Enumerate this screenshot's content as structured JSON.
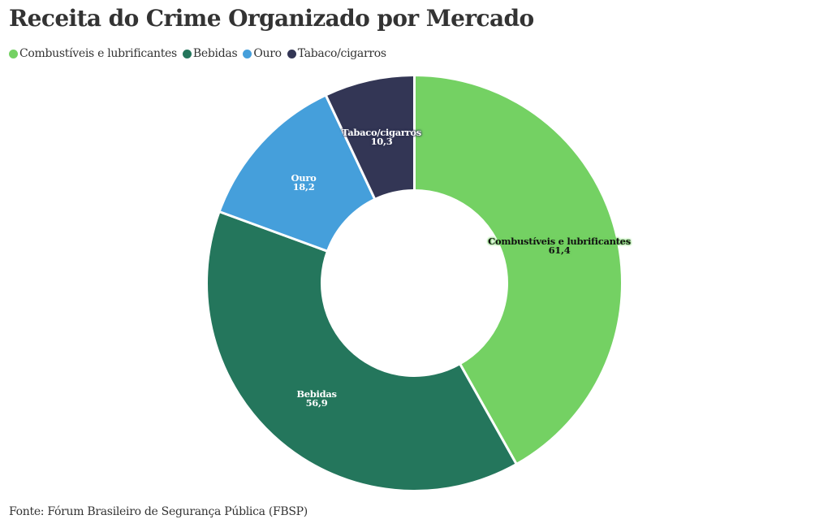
{
  "title": "Receita do Crime Organizado por Mercado",
  "source": "Fonte: Fórum Brasileiro de Segurança Pública (FBSP)",
  "legend": [
    {
      "label": "Combustíveis e lubrificantes",
      "color": "#74d163"
    },
    {
      "label": "Bebidas",
      "color": "#24765c"
    },
    {
      "label": "Ouro",
      "color": "#459fdb"
    },
    {
      "label": "Tabaco/cigarros",
      "color": "#333655"
    }
  ],
  "labels": {
    "s0": {
      "name": "Combustíveis e lubrificantes",
      "value": "61,4"
    },
    "s1": {
      "name": "Bebidas",
      "value": "56,9"
    },
    "s2": {
      "name": "Ouro",
      "value": "18,2"
    },
    "s3": {
      "name": "Tabaco/cigarros",
      "value": "10,3"
    }
  },
  "chart_data": {
    "type": "pie",
    "variant": "donut",
    "title": "Receita do Crime Organizado por Mercado",
    "categories": [
      "Combustíveis e lubrificantes",
      "Bebidas",
      "Ouro",
      "Tabaco/cigarros"
    ],
    "values": [
      61.4,
      56.9,
      18.2,
      10.3
    ],
    "colors": [
      "#74d163",
      "#24765c",
      "#459fdb",
      "#333655"
    ],
    "value_labels": [
      "61,4",
      "56,9",
      "18,2",
      "10,3"
    ],
    "legend_position": "top",
    "start_angle": 0,
    "direction": "clockwise",
    "source": "Fonte: Fórum Brasileiro de Segurança Pública (FBSP)"
  }
}
